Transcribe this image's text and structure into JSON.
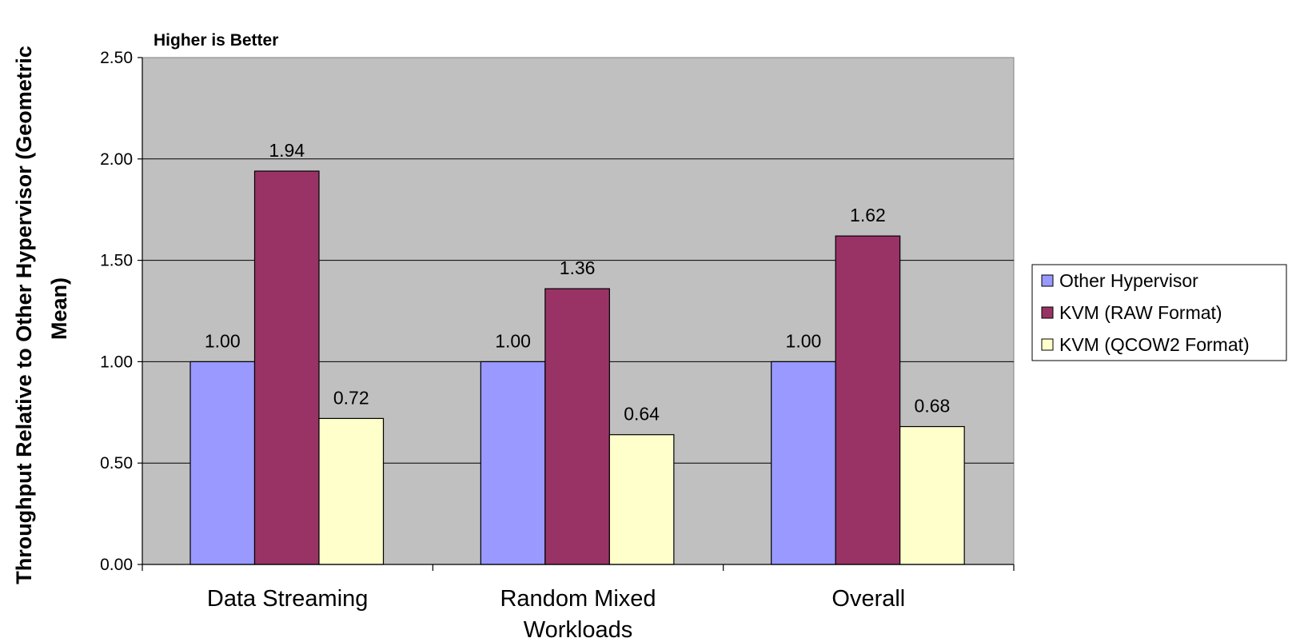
{
  "chart_data": {
    "type": "bar",
    "note": "Higher is Better",
    "ylabel": "Throughput Relative to Other Hypervisor (Geometric Mean)",
    "ylabel_lines": [
      "Throughput Relative to Other Hypervisor (Geometric",
      "Mean)"
    ],
    "xlabel": "",
    "categories": [
      "Data Streaming",
      "Random Mixed Workloads",
      "Overall"
    ],
    "category_lines": [
      [
        "Data Streaming"
      ],
      [
        "Random Mixed",
        "Workloads"
      ],
      [
        "Overall"
      ]
    ],
    "series": [
      {
        "name": "Other Hypervisor",
        "values": [
          1.0,
          1.0,
          1.0
        ],
        "labels": [
          "1.00",
          "1.00",
          "1.00"
        ],
        "color": "#9999ff"
      },
      {
        "name": "KVM (RAW Format)",
        "values": [
          1.94,
          1.36,
          1.62
        ],
        "labels": [
          "1.94",
          "1.36",
          "1.62"
        ],
        "color": "#993366"
      },
      {
        "name": "KVM (QCOW2 Format)",
        "values": [
          0.72,
          0.64,
          0.68
        ],
        "labels": [
          "0.72",
          "0.64",
          "0.68"
        ],
        "color": "#ffffcc"
      }
    ],
    "ylim": [
      0,
      2.5
    ],
    "yticks": [
      0,
      0.5,
      1.0,
      1.5,
      2.0,
      2.5
    ],
    "ytick_labels": [
      "0.00",
      "0.50",
      "1.00",
      "1.50",
      "2.00",
      "2.50"
    ],
    "grid": true,
    "plot_background": "#c0c0c0",
    "legend_position": "right"
  }
}
